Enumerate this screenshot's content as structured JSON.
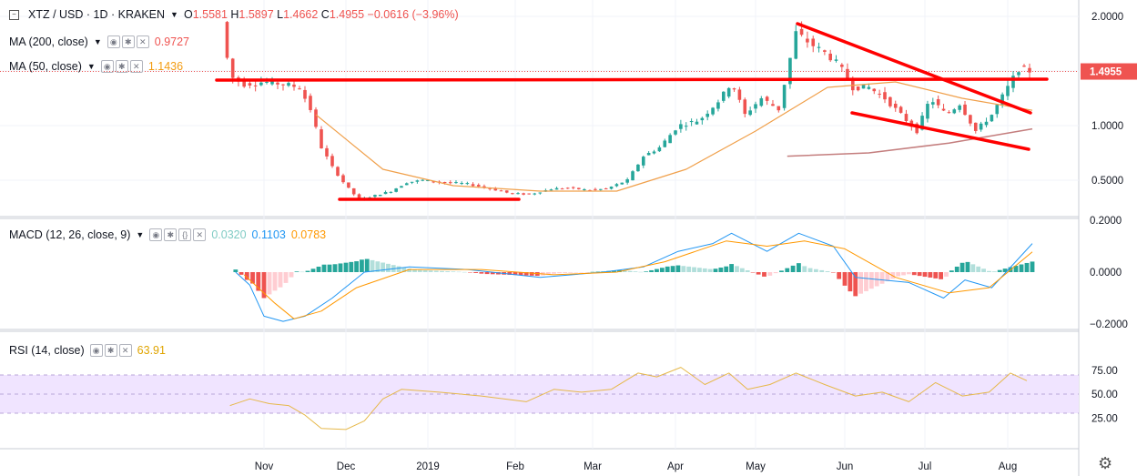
{
  "header": {
    "symbol": "XTZ / USD · 1D · KRAKEN",
    "ohlc": [
      {
        "k": "O",
        "v": "1.5581"
      },
      {
        "k": "H",
        "v": "1.5897"
      },
      {
        "k": "L",
        "v": "1.4662"
      },
      {
        "k": "C",
        "v": "1.4955"
      },
      {
        "k": "",
        "v": "−0.0616 (−3.96%)"
      }
    ]
  },
  "indicators": {
    "ma200": {
      "label": "MA (200, close)",
      "value": "0.9727",
      "color": "#ef5350"
    },
    "ma50": {
      "label": "MA (50, close)",
      "value": "1.1436",
      "color": "#f39c12"
    },
    "macd": {
      "label": "MACD (12, 26, close, 9)",
      "hist": "0.0320",
      "macd": "0.1103",
      "signal": "0.0783"
    },
    "rsi": {
      "label": "RSI (14, close)",
      "value": "63.91",
      "color": "#e0a400"
    }
  },
  "colors": {
    "up": "#26a69a",
    "down": "#ef5350",
    "ma200": "#c47e7e",
    "ma50": "#f0a04b",
    "macd": "#2196f3",
    "signal": "#ff9800",
    "rsi": "#e6b84a",
    "trend": "#ff0000",
    "rsiBand": "#f0e4ff"
  },
  "icons": [
    "collapse-icon",
    "eye-icon",
    "gear-icon",
    "close-icon",
    "settings-gear-icon"
  ],
  "chart_data": {
    "type": "line",
    "title": "XTZ / USD · 1D · KRAKEN",
    "x_ticks": [
      "Nov",
      "Dec",
      "2019",
      "Feb",
      "Mar",
      "Apr",
      "May",
      "Jun",
      "Jul",
      "Aug"
    ],
    "price_axis": {
      "ticks": [
        "2.0000",
        "1.5000",
        "1.0000",
        "0.5000"
      ],
      "last": "1.4955"
    },
    "macd_axis": {
      "ticks": [
        "0.2000",
        "0.0000",
        "−0.2000"
      ]
    },
    "rsi_axis": {
      "ticks": [
        "75.00",
        "50.00",
        "25.00"
      ],
      "band": [
        30,
        70
      ]
    },
    "close_series": [
      [
        "2018-10-17",
        1.95
      ],
      [
        "2018-10-20",
        1.45
      ],
      [
        "2018-10-25",
        1.38
      ],
      [
        "2018-11-01",
        1.4
      ],
      [
        "2018-11-08",
        1.38
      ],
      [
        "2018-11-14",
        1.35
      ],
      [
        "2018-11-18",
        1.15
      ],
      [
        "2018-11-22",
        0.8
      ],
      [
        "2018-11-26",
        0.62
      ],
      [
        "2018-12-01",
        0.45
      ],
      [
        "2018-12-06",
        0.32
      ],
      [
        "2018-12-12",
        0.36
      ],
      [
        "2018-12-18",
        0.4
      ],
      [
        "2018-12-24",
        0.48
      ],
      [
        "2018-12-30",
        0.5
      ],
      [
        "2019-01-06",
        0.48
      ],
      [
        "2019-01-14",
        0.47
      ],
      [
        "2019-01-22",
        0.43
      ],
      [
        "2019-01-30",
        0.38
      ],
      [
        "2019-02-06",
        0.37
      ],
      [
        "2019-02-14",
        0.42
      ],
      [
        "2019-02-20",
        0.43
      ],
      [
        "2019-02-27",
        0.41
      ],
      [
        "2019-03-06",
        0.42
      ],
      [
        "2019-03-14",
        0.5
      ],
      [
        "2019-03-20",
        0.72
      ],
      [
        "2019-03-26",
        0.8
      ],
      [
        "2019-04-02",
        1.0
      ],
      [
        "2019-04-10",
        1.05
      ],
      [
        "2019-04-18",
        1.25
      ],
      [
        "2019-04-22",
        1.4
      ],
      [
        "2019-04-27",
        1.1
      ],
      [
        "2019-05-03",
        1.25
      ],
      [
        "2019-05-09",
        1.15
      ],
      [
        "2019-05-15",
        1.85
      ],
      [
        "2019-05-20",
        1.75
      ],
      [
        "2019-05-26",
        1.65
      ],
      [
        "2019-05-30",
        1.55
      ],
      [
        "2019-06-04",
        1.35
      ],
      [
        "2019-06-10",
        1.35
      ],
      [
        "2019-06-16",
        1.25
      ],
      [
        "2019-06-22",
        1.1
      ],
      [
        "2019-06-28",
        0.95
      ],
      [
        "2019-07-03",
        1.25
      ],
      [
        "2019-07-09",
        1.1
      ],
      [
        "2019-07-14",
        1.2
      ],
      [
        "2019-07-20",
        0.95
      ],
      [
        "2019-07-26",
        1.1
      ],
      [
        "2019-08-01",
        1.35
      ],
      [
        "2019-08-05",
        1.52
      ],
      [
        "2019-08-09",
        1.5
      ]
    ],
    "ma200_series": [
      [
        "2019-05-12",
        0.72
      ],
      [
        "2019-06-10",
        0.75
      ],
      [
        "2019-07-10",
        0.84
      ],
      [
        "2019-08-10",
        0.97
      ]
    ],
    "ma50_series": [
      [
        "2018-11-20",
        1.1
      ],
      [
        "2018-12-15",
        0.6
      ],
      [
        "2019-01-10",
        0.45
      ],
      [
        "2019-02-10",
        0.4
      ],
      [
        "2019-03-10",
        0.4
      ],
      [
        "2019-04-05",
        0.6
      ],
      [
        "2019-05-01",
        0.95
      ],
      [
        "2019-05-26",
        1.35
      ],
      [
        "2019-06-20",
        1.4
      ],
      [
        "2019-07-15",
        1.25
      ],
      [
        "2019-08-10",
        1.14
      ]
    ],
    "macd_series": [
      [
        "2018-10-22",
        0.0
      ],
      [
        "2018-10-27",
        -0.05
      ],
      [
        "2018-11-01",
        -0.17
      ],
      [
        "2018-11-08",
        -0.19
      ],
      [
        "2018-11-16",
        -0.17
      ],
      [
        "2018-11-26",
        -0.1
      ],
      [
        "2018-12-08",
        0.0
      ],
      [
        "2018-12-25",
        0.02
      ],
      [
        "2019-01-15",
        0.01
      ],
      [
        "2019-02-10",
        -0.02
      ],
      [
        "2019-03-05",
        0.0
      ],
      [
        "2019-03-20",
        0.02
      ],
      [
        "2019-04-02",
        0.08
      ],
      [
        "2019-04-15",
        0.11
      ],
      [
        "2019-04-22",
        0.15
      ],
      [
        "2019-05-05",
        0.08
      ],
      [
        "2019-05-16",
        0.15
      ],
      [
        "2019-05-28",
        0.1
      ],
      [
        "2019-06-05",
        -0.02
      ],
      [
        "2019-06-25",
        -0.04
      ],
      [
        "2019-07-08",
        -0.1
      ],
      [
        "2019-07-16",
        -0.03
      ],
      [
        "2019-07-26",
        -0.06
      ],
      [
        "2019-08-10",
        0.11
      ]
    ],
    "signal_series": [
      [
        "2018-10-25",
        -0.01
      ],
      [
        "2018-11-05",
        -0.12
      ],
      [
        "2018-11-12",
        -0.18
      ],
      [
        "2018-11-22",
        -0.15
      ],
      [
        "2018-12-05",
        -0.06
      ],
      [
        "2018-12-25",
        0.01
      ],
      [
        "2019-01-20",
        0.01
      ],
      [
        "2019-02-15",
        -0.01
      ],
      [
        "2019-03-10",
        0.0
      ],
      [
        "2019-03-28",
        0.04
      ],
      [
        "2019-04-20",
        0.12
      ],
      [
        "2019-05-05",
        0.1
      ],
      [
        "2019-05-18",
        0.12
      ],
      [
        "2019-06-01",
        0.09
      ],
      [
        "2019-06-20",
        -0.02
      ],
      [
        "2019-07-10",
        -0.08
      ],
      [
        "2019-07-25",
        -0.06
      ],
      [
        "2019-08-10",
        0.078
      ]
    ],
    "rsi_series": [
      [
        "2018-10-20",
        38
      ],
      [
        "2018-10-27",
        45
      ],
      [
        "2018-11-03",
        40
      ],
      [
        "2018-11-10",
        38
      ],
      [
        "2018-11-16",
        28
      ],
      [
        "2018-11-22",
        14
      ],
      [
        "2018-12-01",
        13
      ],
      [
        "2018-12-08",
        22
      ],
      [
        "2018-12-15",
        45
      ],
      [
        "2018-12-22",
        55
      ],
      [
        "2019-01-05",
        52
      ],
      [
        "2019-01-20",
        48
      ],
      [
        "2019-02-05",
        42
      ],
      [
        "2019-02-15",
        55
      ],
      [
        "2019-02-25",
        52
      ],
      [
        "2019-03-08",
        55
      ],
      [
        "2019-03-18",
        72
      ],
      [
        "2019-03-25",
        68
      ],
      [
        "2019-04-03",
        78
      ],
      [
        "2019-04-12",
        60
      ],
      [
        "2019-04-21",
        72
      ],
      [
        "2019-04-28",
        55
      ],
      [
        "2019-05-06",
        60
      ],
      [
        "2019-05-15",
        72
      ],
      [
        "2019-05-25",
        60
      ],
      [
        "2019-06-05",
        48
      ],
      [
        "2019-06-15",
        52
      ],
      [
        "2019-06-25",
        42
      ],
      [
        "2019-07-05",
        62
      ],
      [
        "2019-07-15",
        48
      ],
      [
        "2019-07-25",
        52
      ],
      [
        "2019-08-02",
        72
      ],
      [
        "2019-08-08",
        64
      ]
    ]
  }
}
